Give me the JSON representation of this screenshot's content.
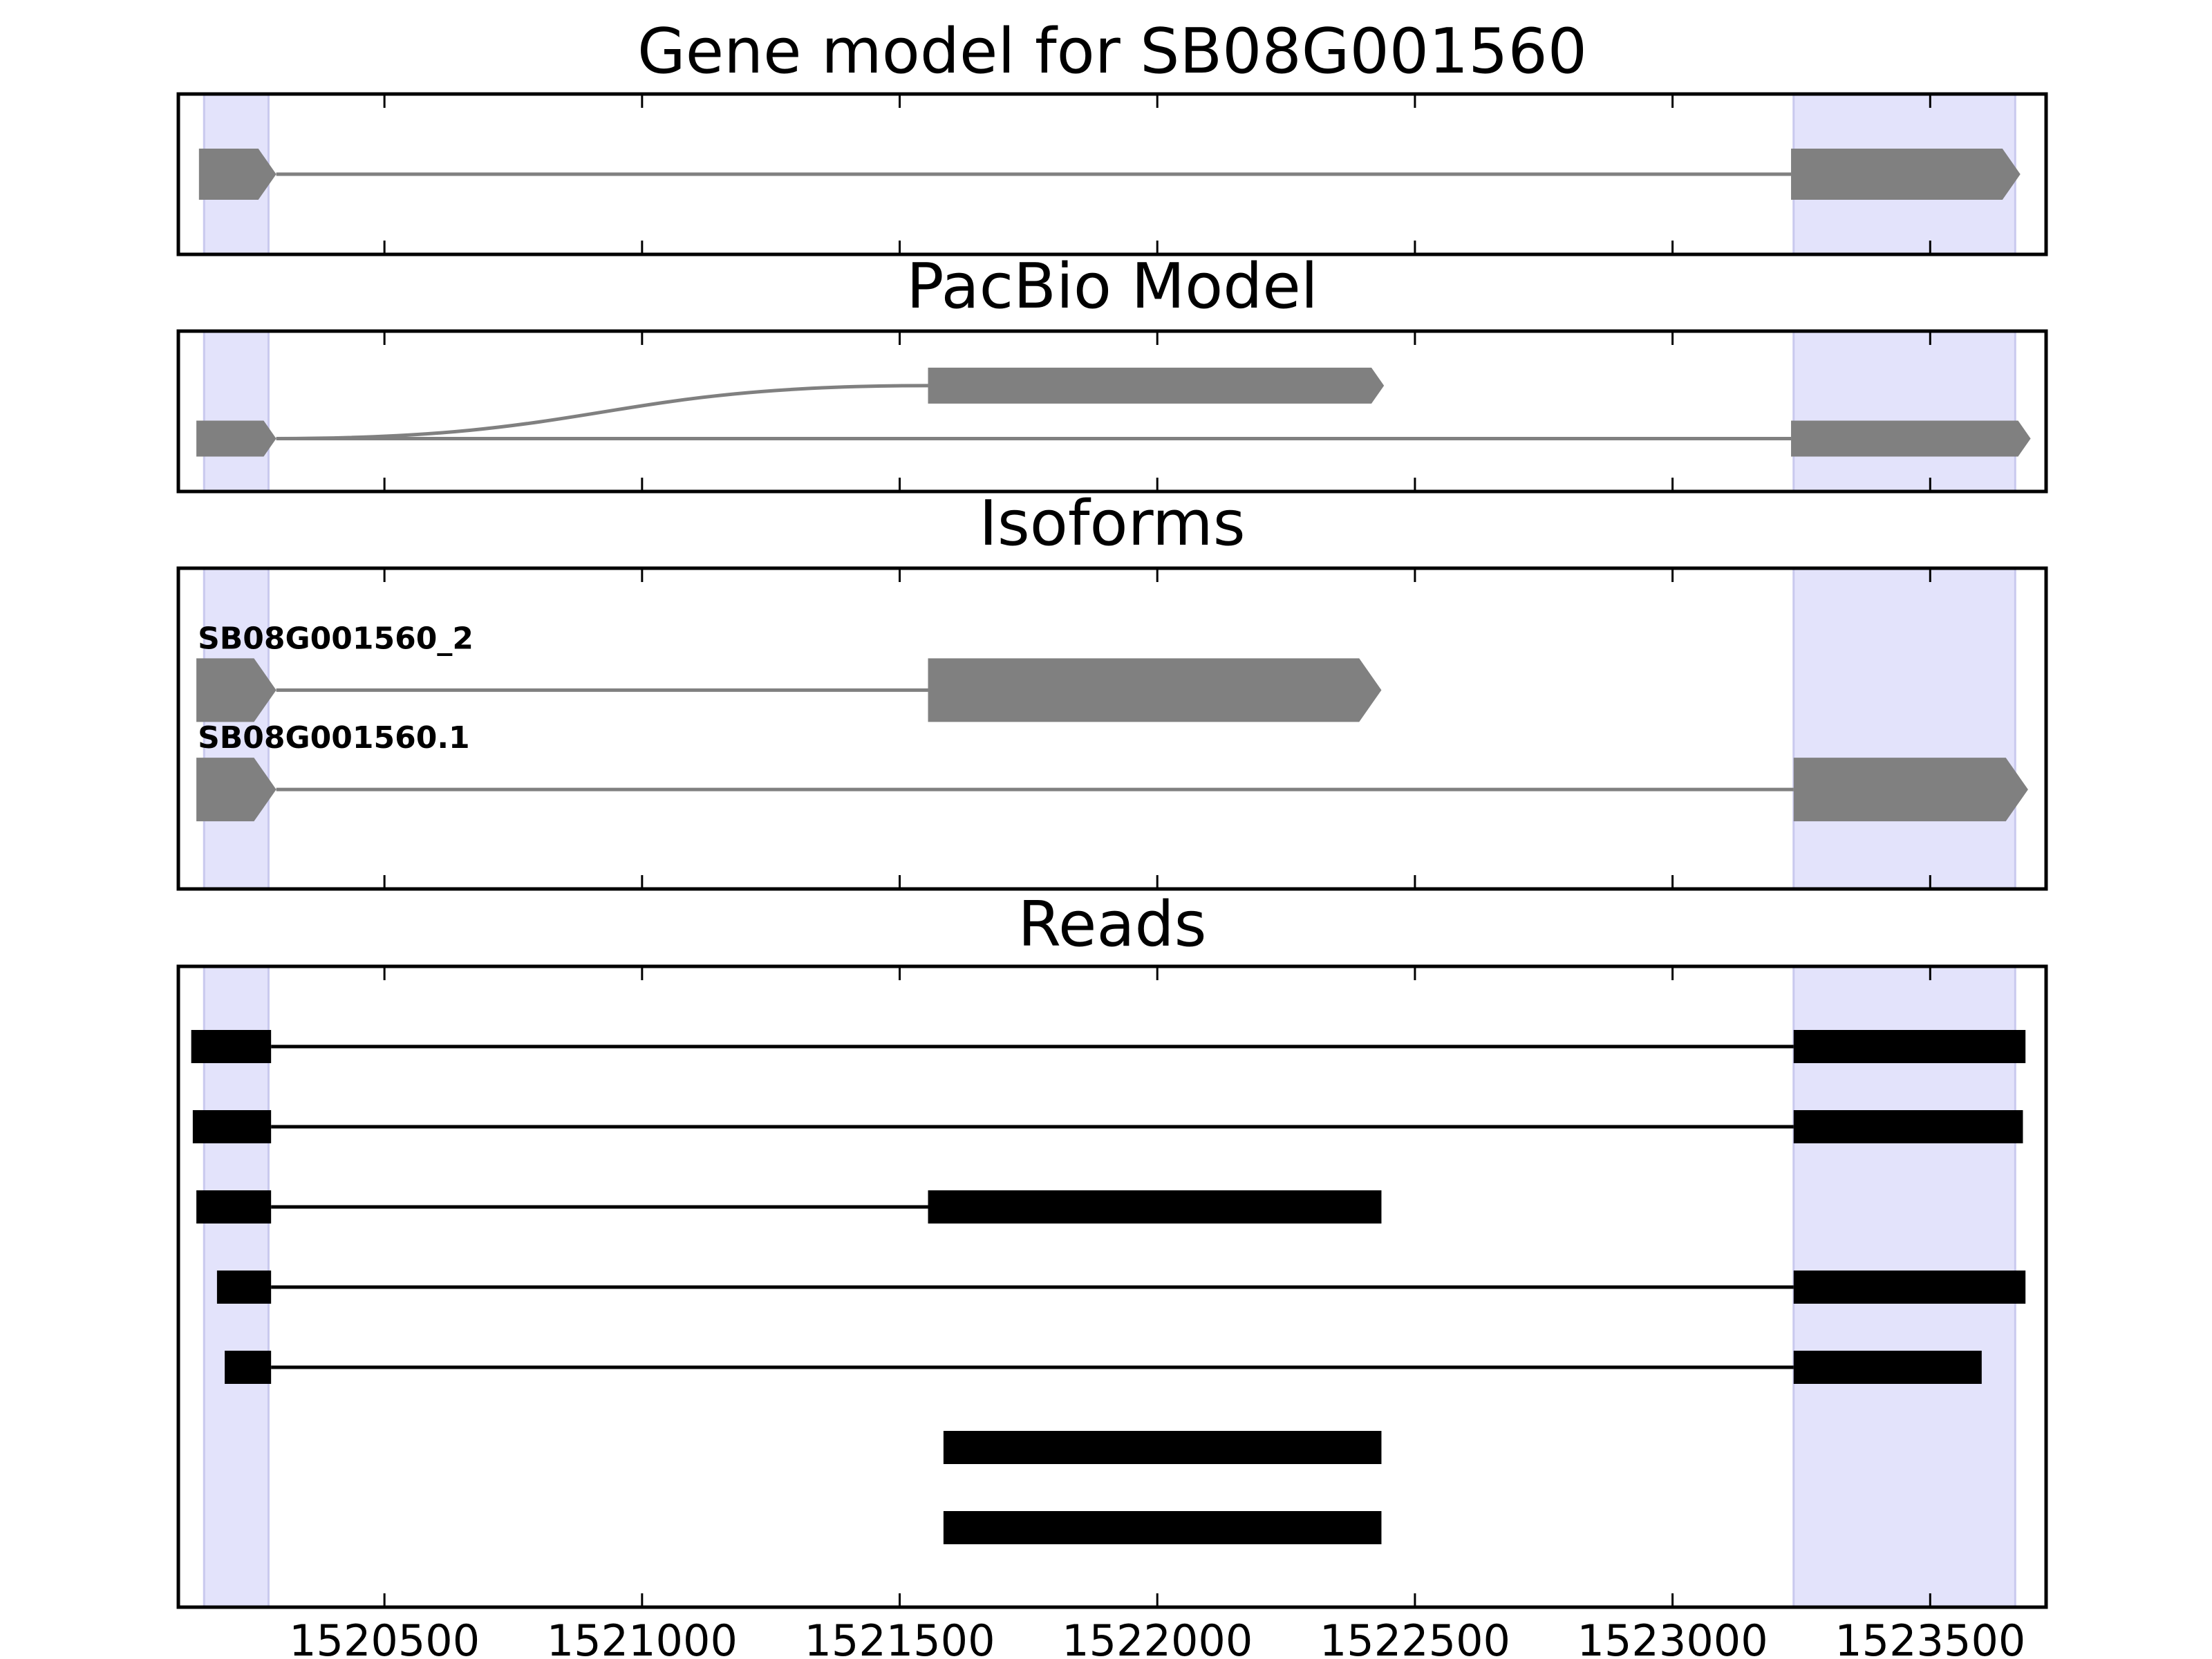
{
  "chart_data": {
    "type": "gene-track",
    "x_range": [
      1520100,
      1523725
    ],
    "x_ticks": [
      1520500,
      1521000,
      1521500,
      1522000,
      1522500,
      1523000,
      1523500
    ],
    "highlight_regions": [
      [
        1520150,
        1520275
      ],
      [
        1523235,
        1523665
      ]
    ],
    "colors": {
      "model": "#808080",
      "read": "#000000",
      "highlight": "#e3e3fb",
      "highlight_edge": "#c9c9ee"
    },
    "panels": [
      {
        "id": "gene-model",
        "title": "Gene model for SB08G001560",
        "transcripts": [
          {
            "row": 0.5,
            "exons": [
              [
                1520140,
                1520290
              ],
              [
                1523230,
                1523675
              ]
            ],
            "strand": "+"
          }
        ]
      },
      {
        "id": "pacbio-model",
        "title": "PacBio Model",
        "transcripts": [
          {
            "row": 0.33,
            "exons": [
              [
                1520135,
                1520290
              ],
              [
                1523230,
                1523695
              ]
            ],
            "strand": "+"
          },
          {
            "row": 0.66,
            "exons": [
              [
                1520290,
                1520290
              ],
              [
                1521555,
                1522440
              ]
            ],
            "strand": "+",
            "curved_intron": true
          }
        ]
      },
      {
        "id": "isoforms",
        "title": "Isoforms",
        "transcripts": [
          {
            "label": "SB08G001560_2",
            "row": 0.62,
            "exons": [
              [
                1520135,
                1520290
              ],
              [
                1521555,
                1522435
              ]
            ],
            "strand": "+"
          },
          {
            "label": "SB08G001560.1",
            "row": 0.31,
            "exons": [
              [
                1520135,
                1520290
              ],
              [
                1523235,
                1523690
              ]
            ],
            "strand": "+"
          }
        ]
      },
      {
        "id": "reads",
        "title": "Reads",
        "reads": [
          {
            "exons": [
              [
                1520125,
                1520280
              ],
              [
                1523235,
                1523685
              ]
            ]
          },
          {
            "exons": [
              [
                1520128,
                1520280
              ],
              [
                1523235,
                1523680
              ]
            ]
          },
          {
            "exons": [
              [
                1520135,
                1520280
              ],
              [
                1521555,
                1522435
              ]
            ]
          },
          {
            "exons": [
              [
                1520175,
                1520280
              ],
              [
                1523235,
                1523685
              ]
            ]
          },
          {
            "exons": [
              [
                1520190,
                1520280
              ],
              [
                1523235,
                1523600
              ]
            ]
          },
          {
            "exons": [
              [
                1521585,
                1522435
              ]
            ]
          },
          {
            "exons": [
              [
                1521585,
                1522435
              ]
            ]
          }
        ]
      }
    ]
  }
}
